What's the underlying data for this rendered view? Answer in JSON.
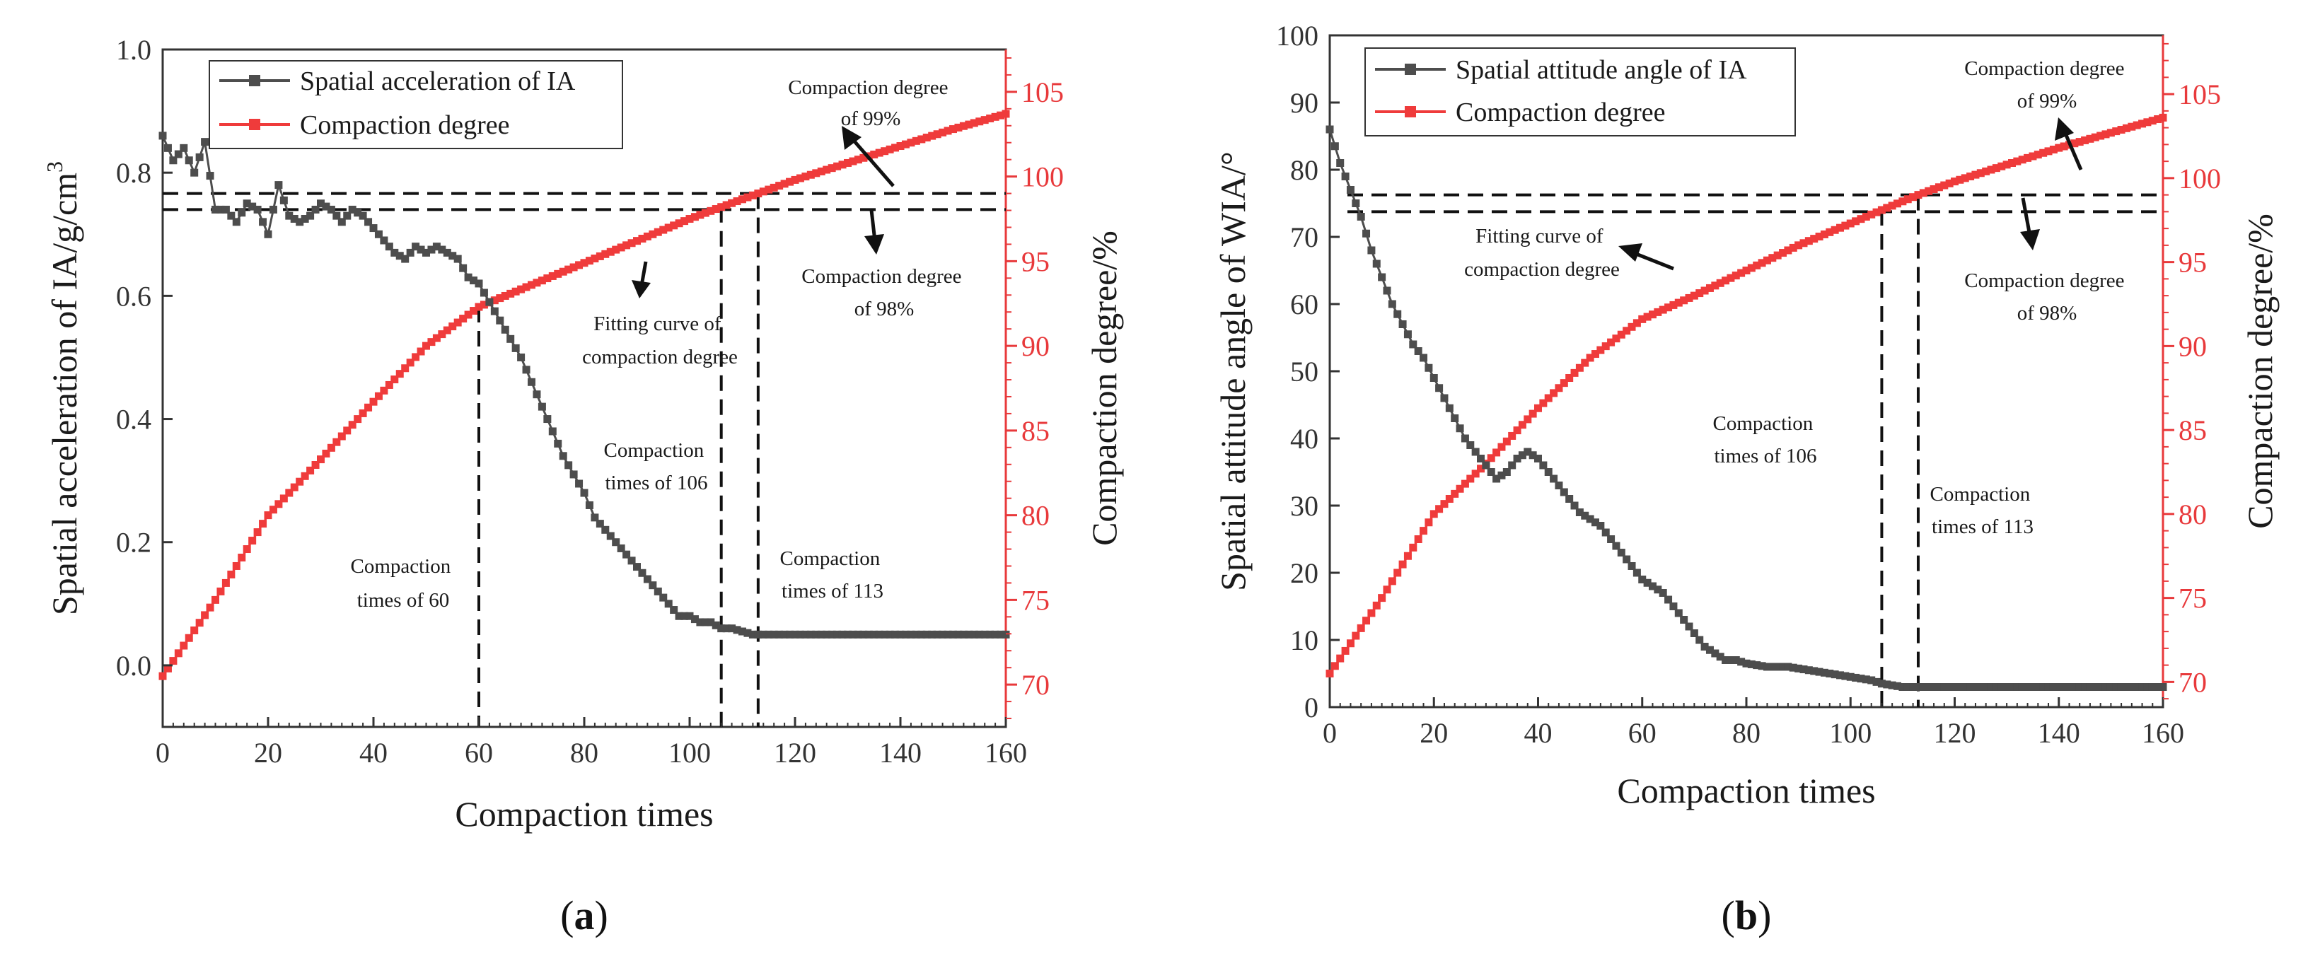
{
  "figure": {
    "panels": [
      {
        "open": "(",
        "letter": "a",
        "close": ")"
      },
      {
        "open": "(",
        "letter": "b",
        "close": ")"
      }
    ]
  },
  "chart_data": [
    {
      "type": "line",
      "panel_label": "(a)",
      "xlabel": "Compaction times",
      "ylabel_left": "Spatial acceleration of IA/g/cm",
      "ylabel_left_superscript": "3",
      "ylabel_right": "Compaction degree/%",
      "xlim": [
        0,
        160
      ],
      "ylim_left": [
        -0.1,
        1.0
      ],
      "ylim_right": [
        67.5,
        107.5
      ],
      "xticks": [
        0,
        20,
        40,
        60,
        80,
        100,
        120,
        140,
        160
      ],
      "yticks_left": [
        0.0,
        0.2,
        0.4,
        0.6,
        0.8,
        1.0
      ],
      "yticks_right": [
        70,
        75,
        80,
        85,
        90,
        95,
        100,
        105
      ],
      "ytick_labels_left": [
        "0.0",
        "0.2",
        "0.4",
        "0.6",
        "0.8",
        "1.0"
      ],
      "legend": {
        "position": "top-left",
        "entries": [
          "Spatial acceleration of IA",
          "Compaction degree"
        ]
      },
      "series": [
        {
          "name": "Spatial acceleration of IA",
          "axis": "left",
          "color": "#4d4d4d",
          "x": [
            0,
            2,
            4,
            6,
            8,
            10,
            12,
            14,
            16,
            18,
            20,
            22,
            24,
            26,
            28,
            30,
            32,
            34,
            36,
            38,
            40,
            42,
            44,
            46,
            48,
            50,
            52,
            54,
            56,
            58,
            60,
            62,
            64,
            66,
            68,
            70,
            72,
            74,
            76,
            78,
            80,
            82,
            84,
            86,
            88,
            90,
            92,
            94,
            96,
            98,
            100,
            102,
            104,
            106,
            108,
            110,
            112,
            114,
            116,
            118,
            120,
            125,
            130,
            135,
            140,
            145,
            150,
            155,
            160
          ],
          "values": [
            0.86,
            0.82,
            0.84,
            0.8,
            0.85,
            0.74,
            0.74,
            0.72,
            0.75,
            0.74,
            0.7,
            0.78,
            0.73,
            0.72,
            0.73,
            0.75,
            0.74,
            0.72,
            0.74,
            0.73,
            0.71,
            0.69,
            0.67,
            0.66,
            0.68,
            0.67,
            0.68,
            0.67,
            0.66,
            0.63,
            0.62,
            0.59,
            0.56,
            0.53,
            0.5,
            0.46,
            0.42,
            0.38,
            0.34,
            0.31,
            0.28,
            0.24,
            0.22,
            0.2,
            0.18,
            0.16,
            0.14,
            0.12,
            0.1,
            0.08,
            0.08,
            0.07,
            0.07,
            0.06,
            0.06,
            0.055,
            0.05,
            0.05,
            0.05,
            0.05,
            0.05,
            0.05,
            0.05,
            0.05,
            0.05,
            0.05,
            0.05,
            0.05,
            0.05
          ]
        },
        {
          "name": "Compaction degree",
          "axis": "right",
          "color": "#ef3b3b",
          "x": [
            0,
            10,
            20,
            30,
            40,
            50,
            60,
            70,
            80,
            90,
            100,
            106,
            113,
            120,
            130,
            140,
            150,
            160
          ],
          "values": [
            70.5,
            75.0,
            80.0,
            83.3,
            86.7,
            90.0,
            92.3,
            93.6,
            94.9,
            96.2,
            97.5,
            98.2,
            99.0,
            99.8,
            100.8,
            101.8,
            102.8,
            103.7
          ]
        }
      ],
      "reference_lines": {
        "horizontal_left": [
          0.74
        ],
        "horizontal_right": [
          99.0
        ],
        "vertical": [
          60,
          106,
          113
        ]
      },
      "annotations": [
        {
          "text": "Compaction degree of 99%",
          "lines": [
            "Compaction degree",
            "of 99%"
          ]
        },
        {
          "text": "Compaction degree of 98%",
          "lines": [
            "Compaction degree",
            "of 98%"
          ]
        },
        {
          "text": "Fitting curve of compaction degree",
          "lines": [
            "Fitting curve of",
            "compaction degree"
          ]
        },
        {
          "text": "Compaction times of 106",
          "lines": [
            "Compaction",
            "times of 106"
          ]
        },
        {
          "text": "Compaction times of 60",
          "lines": [
            "Compaction",
            "times of 60"
          ]
        },
        {
          "text": "Compaction times of 113",
          "lines": [
            "Compaction",
            "times of 113"
          ]
        }
      ]
    },
    {
      "type": "line",
      "panel_label": "(b)",
      "xlabel": "Compaction times",
      "ylabel_left": "Spatial attitude angle of WIA/°",
      "ylabel_right": "Compaction degree/%",
      "xlim": [
        0,
        160
      ],
      "ylim_left": [
        0,
        100
      ],
      "ylim_right": [
        68.5,
        108.5
      ],
      "xticks": [
        0,
        20,
        40,
        60,
        80,
        100,
        120,
        140,
        160
      ],
      "yticks_left": [
        0,
        10,
        20,
        30,
        40,
        50,
        60,
        70,
        80,
        90,
        100
      ],
      "yticks_right": [
        70,
        75,
        80,
        85,
        90,
        95,
        100,
        105
      ],
      "ytick_labels_left": [
        "0",
        "10",
        "20",
        "30",
        "40",
        "50",
        "60",
        "70",
        "80",
        "90",
        "100"
      ],
      "legend": {
        "position": "top-left",
        "entries": [
          "Spatial attitude angle of IA",
          "Compaction degree"
        ]
      },
      "series": [
        {
          "name": "Spatial attitude angle of IA",
          "axis": "left",
          "color": "#4d4d4d",
          "x": [
            0,
            2,
            4,
            6,
            8,
            10,
            12,
            14,
            16,
            18,
            20,
            22,
            24,
            26,
            28,
            30,
            32,
            34,
            36,
            38,
            40,
            42,
            44,
            46,
            48,
            50,
            52,
            54,
            56,
            58,
            60,
            62,
            64,
            66,
            68,
            70,
            72,
            74,
            76,
            78,
            80,
            84,
            88,
            92,
            96,
            100,
            104,
            106,
            110,
            115,
            120,
            130,
            140,
            150,
            160
          ],
          "values": [
            86,
            81,
            77,
            73,
            68,
            64,
            60,
            57,
            54,
            52,
            49,
            46,
            43,
            40,
            38,
            36,
            34,
            35,
            37,
            38,
            37,
            35,
            33,
            31,
            29,
            28,
            27,
            25,
            23,
            21,
            19,
            18,
            17,
            15,
            13,
            11,
            9,
            8,
            7,
            7,
            6.5,
            6,
            6,
            5.5,
            5,
            4.5,
            4,
            3.5,
            3,
            3,
            3,
            3,
            3,
            3,
            3
          ]
        },
        {
          "name": "Compaction degree",
          "axis": "right",
          "color": "#ef3b3b",
          "x": [
            0,
            10,
            20,
            30,
            40,
            50,
            60,
            70,
            80,
            90,
            100,
            106,
            113,
            120,
            130,
            140,
            150,
            160
          ],
          "values": [
            70.5,
            75.0,
            80.0,
            83.0,
            86.3,
            89.3,
            91.6,
            93.0,
            94.5,
            96.0,
            97.3,
            98.1,
            99.0,
            99.8,
            100.8,
            101.8,
            102.7,
            103.6
          ]
        }
      ],
      "reference_lines": {
        "horizontal_right": [
          99.0,
          98.0
        ],
        "vertical": [
          106,
          113
        ]
      },
      "annotations": [
        {
          "text": "Compaction degree of 99%",
          "lines": [
            "Compaction degree",
            "of 99%"
          ]
        },
        {
          "text": "Fitting curve of compaction degree",
          "lines": [
            "Fitting curve of",
            "compaction degree"
          ]
        },
        {
          "text": "Compaction degree of 98%",
          "lines": [
            "Compaction degree",
            "of 98%"
          ]
        },
        {
          "text": "Compaction times of 106",
          "lines": [
            "Compaction",
            "times of 106"
          ]
        },
        {
          "text": "Compaction times of 113",
          "lines": [
            "Compaction",
            "times of 113"
          ]
        }
      ]
    }
  ]
}
